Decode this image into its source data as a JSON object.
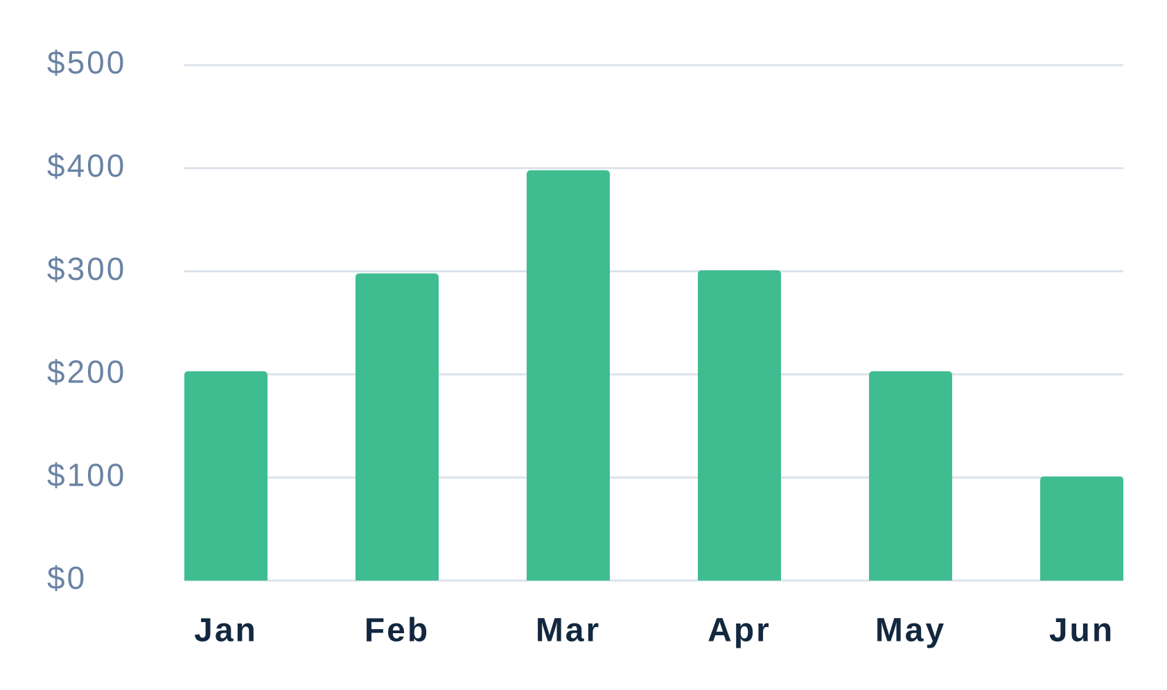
{
  "chart_data": {
    "type": "bar",
    "categories": [
      "Jan",
      "Feb",
      "Mar",
      "Apr",
      "May",
      "Jun"
    ],
    "values": [
      203,
      298,
      398,
      301,
      203,
      101
    ],
    "color": "#3fbd91",
    "ylim": [
      0,
      500
    ],
    "yticks": [
      {
        "value": 0,
        "label": "$0"
      },
      {
        "value": 100,
        "label": "$100"
      },
      {
        "value": 200,
        "label": "$200"
      },
      {
        "value": 300,
        "label": "$300"
      },
      {
        "value": 400,
        "label": "$400"
      },
      {
        "value": 500,
        "label": "$500"
      }
    ],
    "grid": true
  }
}
